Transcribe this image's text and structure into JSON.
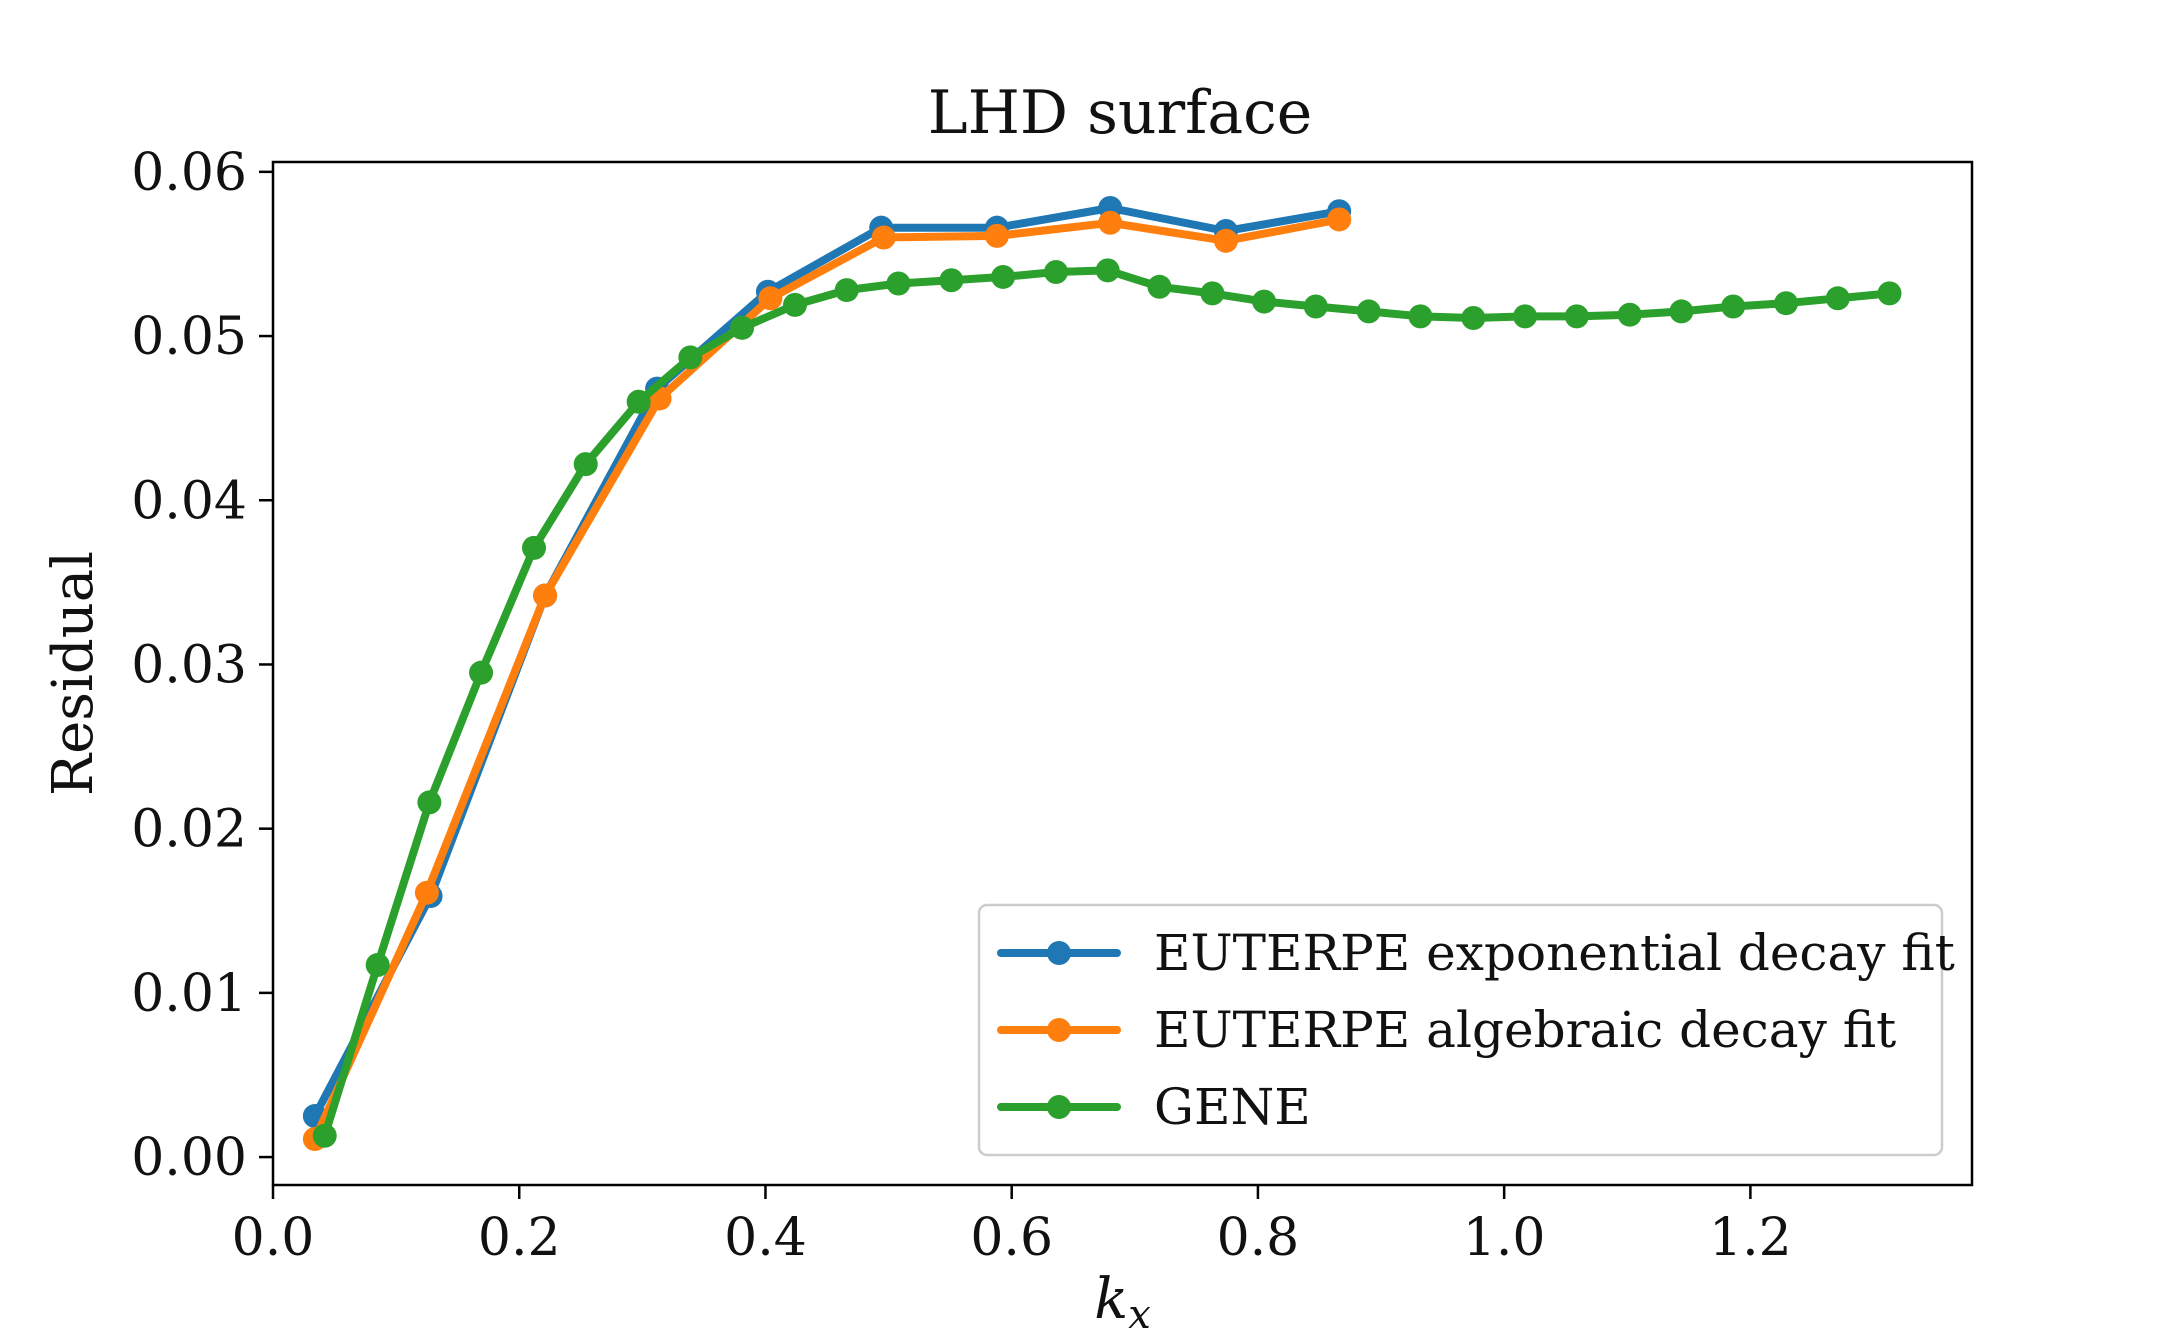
{
  "chart_data": {
    "type": "line",
    "title": "LHD surface",
    "xlabel": "k",
    "xlabel_subscript": "x",
    "ylabel": "Residual",
    "xlim": [
      0.0,
      1.38
    ],
    "ylim": [
      -0.0017,
      0.0606
    ],
    "xticks": [
      0.0,
      0.2,
      0.4,
      0.6,
      0.8,
      1.0,
      1.2
    ],
    "xtick_labels": [
      "0.0",
      "0.2",
      "0.4",
      "0.6",
      "0.8",
      "1.0",
      "1.2"
    ],
    "yticks": [
      0.0,
      0.01,
      0.02,
      0.03,
      0.04,
      0.05,
      0.06
    ],
    "ytick_labels": [
      "0.00",
      "0.01",
      "0.02",
      "0.03",
      "0.04",
      "0.05",
      "0.06"
    ],
    "grid": false,
    "legend_position": "lower-right",
    "series": [
      {
        "name": "EUTERPE exponential decay fit",
        "color": "#1f77b4",
        "x": [
          0.034,
          0.128,
          0.221,
          0.312,
          0.402,
          0.494,
          0.588,
          0.68,
          0.774,
          0.866
        ],
        "y": [
          0.0025,
          0.0159,
          0.0342,
          0.0468,
          0.0527,
          0.0566,
          0.0566,
          0.0578,
          0.0564,
          0.0576
        ]
      },
      {
        "name": "EUTERPE algebraic decay fit",
        "color": "#ff7f0e",
        "x": [
          0.034,
          0.125,
          0.221,
          0.314,
          0.404,
          0.496,
          0.588,
          0.68,
          0.774,
          0.866
        ],
        "y": [
          0.0011,
          0.0161,
          0.0342,
          0.0462,
          0.0523,
          0.056,
          0.0561,
          0.0569,
          0.0558,
          0.0571
        ]
      },
      {
        "name": "GENE",
        "color": "#2ca02c",
        "x": [
          0.042,
          0.085,
          0.127,
          0.169,
          0.212,
          0.254,
          0.297,
          0.339,
          0.381,
          0.424,
          0.466,
          0.508,
          0.551,
          0.593,
          0.636,
          0.678,
          0.72,
          0.763,
          0.805,
          0.847,
          0.89,
          0.932,
          0.975,
          1.017,
          1.059,
          1.102,
          1.144,
          1.186,
          1.229,
          1.271,
          1.313
        ],
        "y": [
          0.0013,
          0.0117,
          0.0216,
          0.0295,
          0.0371,
          0.0422,
          0.046,
          0.0487,
          0.0505,
          0.0519,
          0.0528,
          0.0532,
          0.0534,
          0.0536,
          0.0539,
          0.054,
          0.053,
          0.0526,
          0.0521,
          0.0518,
          0.0515,
          0.0512,
          0.0511,
          0.0512,
          0.0512,
          0.0513,
          0.0515,
          0.0518,
          0.052,
          0.0523,
          0.0526
        ]
      }
    ]
  }
}
